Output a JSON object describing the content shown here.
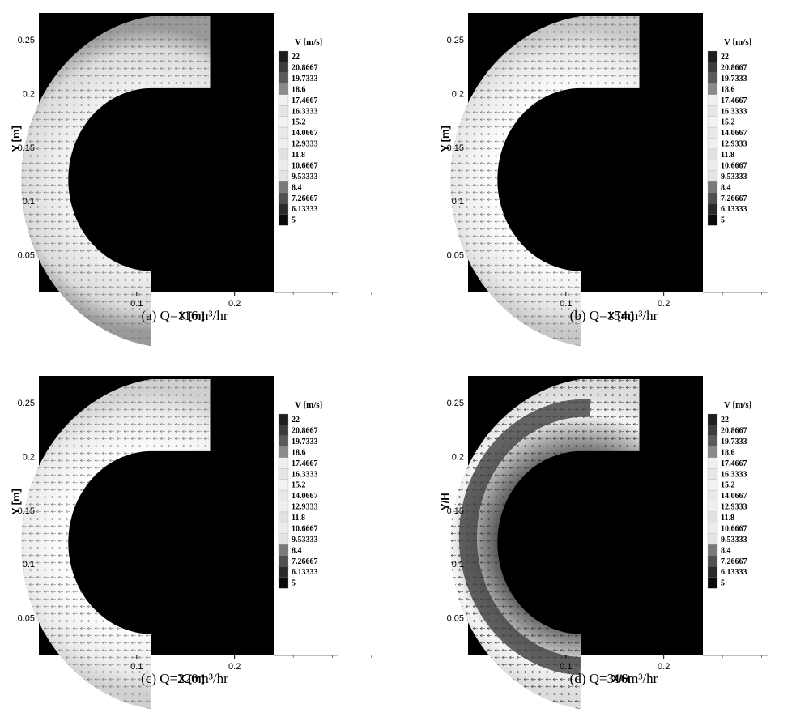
{
  "chart_data": [
    {
      "type": "heatmap",
      "panel": "a",
      "caption": "(a) Q=116m³/hr",
      "xlabel": "X [m]",
      "ylabel": "Y [m]",
      "xlim": [
        0,
        0.24
      ],
      "ylim": [
        0.015,
        0.275
      ],
      "xticks": [
        0.1,
        0.2
      ],
      "yticks": [
        0.05,
        0.1,
        0.15,
        0.2,
        0.25
      ],
      "colorbar_title": "V [m/s]",
      "colorbar_levels": [
        "22",
        "20.8667",
        "19.7333",
        "18.6",
        "17.4667",
        "16.3333",
        "15.2",
        "14.0667",
        "12.9333",
        "11.8",
        "10.6667",
        "9.53333",
        "8.4",
        "7.26667",
        "6.13333",
        "5"
      ]
    },
    {
      "type": "heatmap",
      "panel": "b",
      "caption": "(b) Q=154m³/hr",
      "xlabel": "X [m]",
      "ylabel": "Y [m]",
      "xlim": [
        0,
        0.24
      ],
      "ylim": [
        0.015,
        0.275
      ],
      "xticks": [
        0.1,
        0.2
      ],
      "yticks": [
        0.05,
        0.1,
        0.15,
        0.2,
        0.25
      ],
      "colorbar_title": "V [m/s]",
      "colorbar_levels": [
        "22",
        "20.8667",
        "19.7333",
        "18.6",
        "17.4667",
        "16.3333",
        "15.2",
        "14.0667",
        "12.9333",
        "11.8",
        "10.6667",
        "9.53333",
        "8.4",
        "7.26667",
        "6.13333",
        "5"
      ]
    },
    {
      "type": "heatmap",
      "panel": "c",
      "caption": "(c) Q=220m³/hr",
      "xlabel": "X [m]",
      "ylabel": "Y [m]",
      "xlim": [
        0,
        0.24
      ],
      "ylim": [
        0.015,
        0.275
      ],
      "xticks": [
        0.1,
        0.2
      ],
      "yticks": [
        0.05,
        0.1,
        0.15,
        0.2,
        0.25
      ],
      "colorbar_title": "V [m/s]",
      "colorbar_levels": [
        "22",
        "20.8667",
        "19.7333",
        "18.6",
        "17.4667",
        "16.3333",
        "15.2",
        "14.0667",
        "12.9333",
        "11.8",
        "10.6667",
        "9.53333",
        "8.4",
        "7.26667",
        "6.13333",
        "5"
      ]
    },
    {
      "type": "heatmap",
      "panel": "d",
      "caption": "(d) Q=316m³/hr",
      "xlabel": "X/H",
      "ylabel": "Y/H",
      "xlim": [
        0,
        0.24
      ],
      "ylim": [
        0.015,
        0.275
      ],
      "xticks": [
        0.1,
        0.2
      ],
      "yticks": [
        0.05,
        0.1,
        0.15,
        0.2,
        0.25
      ],
      "colorbar_title": "V [m/s]",
      "colorbar_levels": [
        "22",
        "20.8667",
        "19.7333",
        "18.6",
        "17.4667",
        "16.3333",
        "15.2",
        "14.0667",
        "12.9333",
        "11.8",
        "10.6667",
        "9.53333",
        "8.4",
        "7.26667",
        "6.13333",
        "5"
      ]
    }
  ]
}
